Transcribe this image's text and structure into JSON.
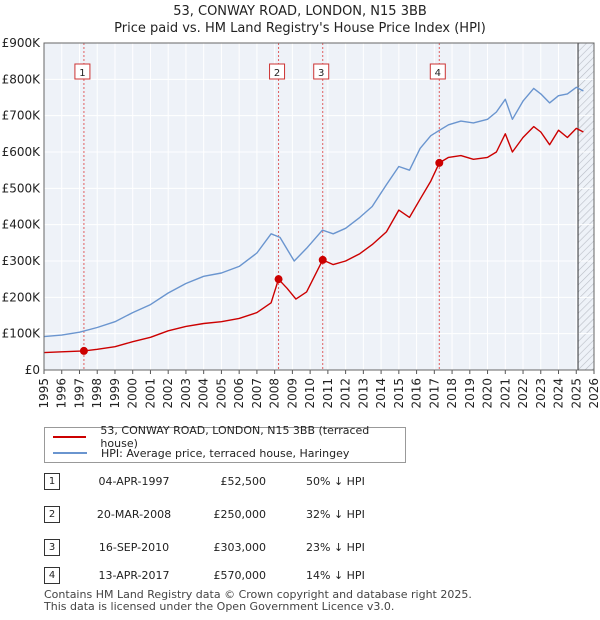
{
  "header": {
    "title": "53, CONWAY ROAD, LONDON, N15 3BB",
    "subtitle": "Price paid vs. HM Land Registry's House Price Index (HPI)"
  },
  "chart_data": {
    "type": "line",
    "title": "53, CONWAY ROAD, LONDON, N15 3BB",
    "subtitle": "Price paid vs. HM Land Registry's House Price Index (HPI)",
    "xlim": [
      1995,
      2026
    ],
    "ylim": [
      0,
      900000
    ],
    "x_ticks": [
      "1995",
      "1996",
      "1997",
      "1998",
      "1999",
      "2000",
      "2001",
      "2002",
      "2003",
      "2004",
      "2005",
      "2006",
      "2007",
      "2008",
      "2009",
      "2010",
      "2011",
      "2012",
      "2013",
      "2014",
      "2015",
      "2016",
      "2017",
      "2018",
      "2019",
      "2020",
      "2021",
      "2022",
      "2023",
      "2024",
      "2025",
      "2026"
    ],
    "y_ticks": [
      {
        "value": 0,
        "label": "£0"
      },
      {
        "value": 100000,
        "label": "£100K"
      },
      {
        "value": 200000,
        "label": "£200K"
      },
      {
        "value": 300000,
        "label": "£300K"
      },
      {
        "value": 400000,
        "label": "£400K"
      },
      {
        "value": 500000,
        "label": "£500K"
      },
      {
        "value": 600000,
        "label": "£600K"
      },
      {
        "value": 700000,
        "label": "£700K"
      },
      {
        "value": 800000,
        "label": "£800K"
      },
      {
        "value": 900000,
        "label": "£900K"
      }
    ],
    "grid": true,
    "forecast_start": 2025.1,
    "series": [
      {
        "name": "53, CONWAY ROAD, LONDON, N15 3BB (terraced house)",
        "color": "#cc0000",
        "points": [
          [
            1995.0,
            48000
          ],
          [
            1996.0,
            50000
          ],
          [
            1997.25,
            52500
          ],
          [
            1998.0,
            57000
          ],
          [
            1999.0,
            64000
          ],
          [
            2000.0,
            78000
          ],
          [
            2001.0,
            90000
          ],
          [
            2002.0,
            108000
          ],
          [
            2003.0,
            120000
          ],
          [
            2004.0,
            128000
          ],
          [
            2005.0,
            133000
          ],
          [
            2006.0,
            142000
          ],
          [
            2007.0,
            158000
          ],
          [
            2007.8,
            185000
          ],
          [
            2008.22,
            250000
          ],
          [
            2008.7,
            225000
          ],
          [
            2009.2,
            195000
          ],
          [
            2009.8,
            215000
          ],
          [
            2010.71,
            303000
          ],
          [
            2011.3,
            290000
          ],
          [
            2012.0,
            300000
          ],
          [
            2012.8,
            320000
          ],
          [
            2013.5,
            345000
          ],
          [
            2014.3,
            380000
          ],
          [
            2015.0,
            440000
          ],
          [
            2015.6,
            420000
          ],
          [
            2016.2,
            470000
          ],
          [
            2016.8,
            520000
          ],
          [
            2017.28,
            570000
          ],
          [
            2017.8,
            585000
          ],
          [
            2018.5,
            590000
          ],
          [
            2019.2,
            580000
          ],
          [
            2020.0,
            585000
          ],
          [
            2020.5,
            600000
          ],
          [
            2021.0,
            650000
          ],
          [
            2021.4,
            600000
          ],
          [
            2022.0,
            640000
          ],
          [
            2022.6,
            670000
          ],
          [
            2023.0,
            655000
          ],
          [
            2023.5,
            620000
          ],
          [
            2024.0,
            660000
          ],
          [
            2024.5,
            640000
          ],
          [
            2025.0,
            665000
          ],
          [
            2025.4,
            655000
          ]
        ]
      },
      {
        "name": "HPI: Average price, terraced house, Haringey",
        "color": "#6a95cf",
        "points": [
          [
            1995.0,
            92000
          ],
          [
            1996.0,
            96000
          ],
          [
            1997.0,
            104000
          ],
          [
            1998.0,
            117000
          ],
          [
            1999.0,
            133000
          ],
          [
            2000.0,
            158000
          ],
          [
            2001.0,
            180000
          ],
          [
            2002.0,
            212000
          ],
          [
            2003.0,
            238000
          ],
          [
            2004.0,
            258000
          ],
          [
            2005.0,
            267000
          ],
          [
            2006.0,
            285000
          ],
          [
            2007.0,
            322000
          ],
          [
            2007.8,
            375000
          ],
          [
            2008.3,
            365000
          ],
          [
            2009.1,
            300000
          ],
          [
            2009.8,
            335000
          ],
          [
            2010.7,
            385000
          ],
          [
            2011.3,
            375000
          ],
          [
            2012.0,
            390000
          ],
          [
            2012.8,
            420000
          ],
          [
            2013.5,
            450000
          ],
          [
            2014.3,
            510000
          ],
          [
            2015.0,
            560000
          ],
          [
            2015.6,
            550000
          ],
          [
            2016.2,
            610000
          ],
          [
            2016.8,
            645000
          ],
          [
            2017.3,
            660000
          ],
          [
            2017.8,
            675000
          ],
          [
            2018.5,
            685000
          ],
          [
            2019.2,
            680000
          ],
          [
            2020.0,
            690000
          ],
          [
            2020.5,
            710000
          ],
          [
            2021.0,
            745000
          ],
          [
            2021.4,
            690000
          ],
          [
            2022.0,
            740000
          ],
          [
            2022.6,
            775000
          ],
          [
            2023.0,
            760000
          ],
          [
            2023.5,
            735000
          ],
          [
            2024.0,
            755000
          ],
          [
            2024.5,
            760000
          ],
          [
            2025.0,
            778000
          ],
          [
            2025.4,
            768000
          ]
        ]
      }
    ],
    "sales": [
      {
        "label": "1",
        "x": 1997.25,
        "price": 52500
      },
      {
        "label": "2",
        "x": 2008.22,
        "price": 250000
      },
      {
        "label": "3",
        "x": 2010.71,
        "price": 303000
      },
      {
        "label": "4",
        "x": 2017.28,
        "price": 570000
      }
    ]
  },
  "legend": {
    "items": [
      {
        "label": "53, CONWAY ROAD, LONDON, N15 3BB (terraced house)",
        "color": "#cc0000"
      },
      {
        "label": "HPI: Average price, terraced house, Haringey",
        "color": "#6a95cf"
      }
    ]
  },
  "table": {
    "rows": [
      {
        "num": "1",
        "date": "04-APR-1997",
        "price": "£52,500",
        "hpi": "50% ↓ HPI"
      },
      {
        "num": "2",
        "date": "20-MAR-2008",
        "price": "£250,000",
        "hpi": "32% ↓ HPI"
      },
      {
        "num": "3",
        "date": "16-SEP-2010",
        "price": "£303,000",
        "hpi": "23% ↓ HPI"
      },
      {
        "num": "4",
        "date": "13-APR-2017",
        "price": "£570,000",
        "hpi": "14% ↓ HPI"
      }
    ]
  },
  "footer": {
    "line1": "Contains HM Land Registry data © Crown copyright and database right 2025.",
    "line2": "This data is licensed under the Open Government Licence v3.0."
  }
}
